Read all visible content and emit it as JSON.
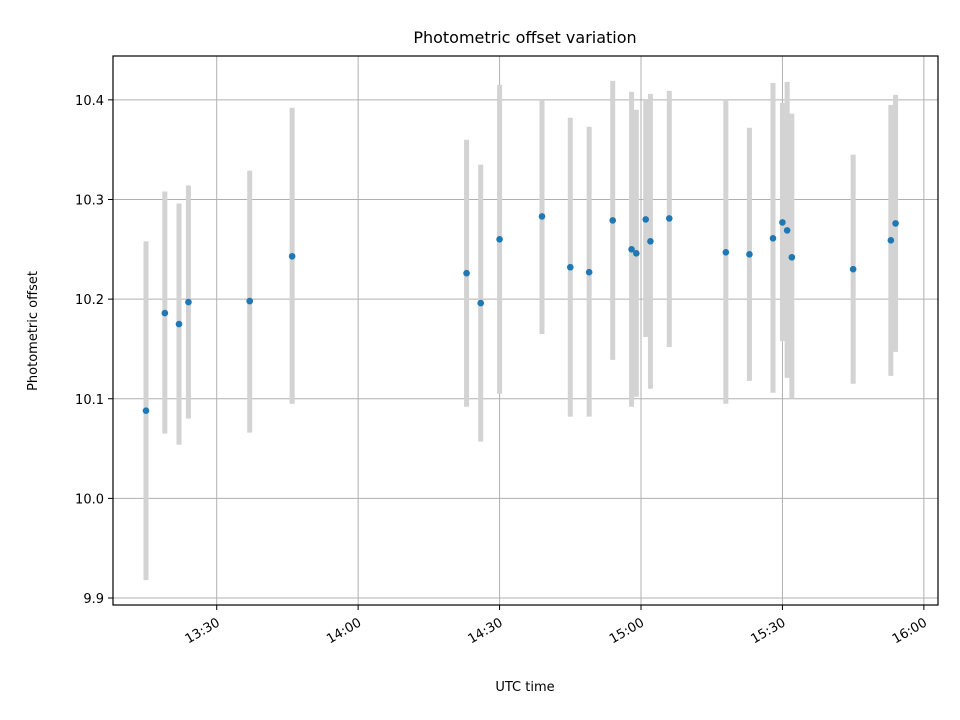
{
  "chart_data": {
    "type": "scatter",
    "title": "Photometric offset variation",
    "xlabel": "UTC time",
    "ylabel": "Photometric offset",
    "x_tick_labels": [
      "13:30",
      "14:00",
      "14:30",
      "15:00",
      "15:30",
      "16:00"
    ],
    "x_ticks_minutes": [
      810,
      840,
      870,
      900,
      930,
      960
    ],
    "y_ticks": [
      9.9,
      10.0,
      10.1,
      10.2,
      10.3,
      10.4
    ],
    "xlim_minutes": [
      788,
      963
    ],
    "ylim": [
      9.893,
      10.444
    ],
    "grid": true,
    "marker_color": "#1f77b4",
    "errorbar_color": "#d3d3d3",
    "points": [
      {
        "time": "13:15",
        "y": 10.088,
        "lo": 9.918,
        "hi": 10.258
      },
      {
        "time": "13:19",
        "y": 10.186,
        "lo": 10.065,
        "hi": 10.308
      },
      {
        "time": "13:22",
        "y": 10.175,
        "lo": 10.054,
        "hi": 10.296
      },
      {
        "time": "13:24",
        "y": 10.197,
        "lo": 10.08,
        "hi": 10.314
      },
      {
        "time": "13:37",
        "y": 10.198,
        "lo": 10.066,
        "hi": 10.329
      },
      {
        "time": "13:46",
        "y": 10.243,
        "lo": 10.095,
        "hi": 10.392
      },
      {
        "time": "14:23",
        "y": 10.226,
        "lo": 10.092,
        "hi": 10.36
      },
      {
        "time": "14:26",
        "y": 10.196,
        "lo": 10.057,
        "hi": 10.335
      },
      {
        "time": "14:30",
        "y": 10.26,
        "lo": 10.105,
        "hi": 10.415
      },
      {
        "time": "14:39",
        "y": 10.283,
        "lo": 10.165,
        "hi": 10.4
      },
      {
        "time": "14:45",
        "y": 10.232,
        "lo": 10.082,
        "hi": 10.382
      },
      {
        "time": "14:49",
        "y": 10.227,
        "lo": 10.082,
        "hi": 10.373
      },
      {
        "time": "14:54",
        "y": 10.279,
        "lo": 10.139,
        "hi": 10.419
      },
      {
        "time": "14:58",
        "y": 10.25,
        "lo": 10.092,
        "hi": 10.408
      },
      {
        "time": "14:59",
        "y": 10.246,
        "lo": 10.102,
        "hi": 10.39
      },
      {
        "time": "15:01",
        "y": 10.28,
        "lo": 10.162,
        "hi": 10.4
      },
      {
        "time": "15:02",
        "y": 10.258,
        "lo": 10.11,
        "hi": 10.406
      },
      {
        "time": "15:06",
        "y": 10.281,
        "lo": 10.152,
        "hi": 10.409
      },
      {
        "time": "15:18",
        "y": 10.247,
        "lo": 10.095,
        "hi": 10.4
      },
      {
        "time": "15:23",
        "y": 10.245,
        "lo": 10.118,
        "hi": 10.372
      },
      {
        "time": "15:28",
        "y": 10.261,
        "lo": 10.106,
        "hi": 10.417
      },
      {
        "time": "15:30",
        "y": 10.277,
        "lo": 10.158,
        "hi": 10.397
      },
      {
        "time": "15:31",
        "y": 10.269,
        "lo": 10.121,
        "hi": 10.418
      },
      {
        "time": "15:32",
        "y": 10.242,
        "lo": 10.1,
        "hi": 10.386
      },
      {
        "time": "15:45",
        "y": 10.23,
        "lo": 10.115,
        "hi": 10.345
      },
      {
        "time": "15:53",
        "y": 10.259,
        "lo": 10.123,
        "hi": 10.395
      },
      {
        "time": "15:54",
        "y": 10.276,
        "lo": 10.147,
        "hi": 10.405
      }
    ]
  }
}
